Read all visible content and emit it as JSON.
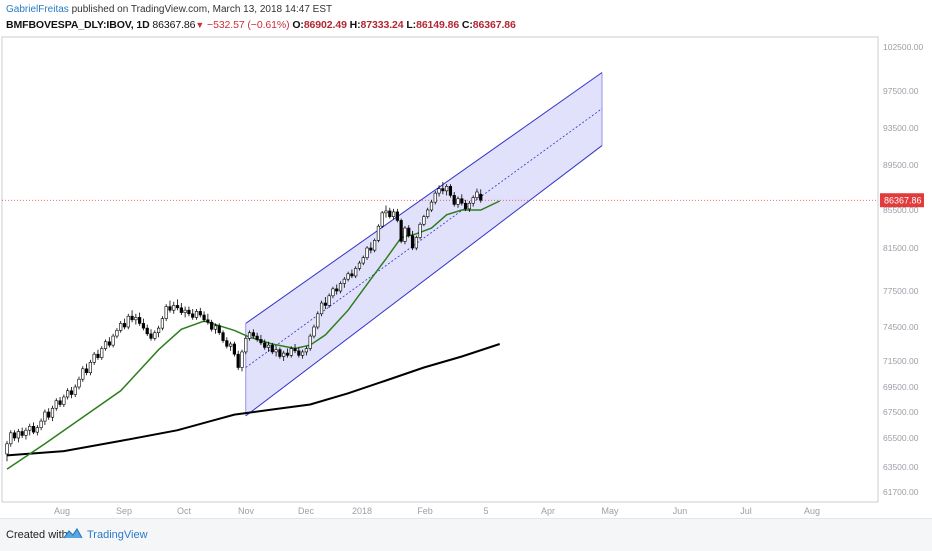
{
  "header": {
    "author": "GabrielFreitas",
    "published_text": "published on TradingView.com, March 13, 2018 14:47 EST",
    "symbol": "BMFBOVESPA_DLY:IBOV, 1D",
    "last": "86367.86",
    "change": "−532.57 (−0.61%)",
    "open_label": "O:",
    "open": "86902.49",
    "high_label": "H:",
    "high": "87333.24",
    "low_label": "L:",
    "low": "86149.86",
    "close_label": "C:",
    "close": "86367.86"
  },
  "footer": {
    "created": "Created with",
    "brand": "TradingView"
  },
  "colors": {
    "up": "#ffffff",
    "down": "#000000",
    "ma_short": "#2e7d1e",
    "ma_long": "#000000",
    "channel": "#3333cc",
    "price_line": "#e23b3b",
    "price_tag": "#e23b3b"
  },
  "chart_data": {
    "type": "candlestick",
    "title": "",
    "x_ticks": [
      "Aug",
      "Sep",
      "Oct",
      "Nov",
      "Dec",
      "2018",
      "Feb",
      "5",
      "Apr",
      "May",
      "Jun",
      "Jul",
      "Aug"
    ],
    "y_ticks": [
      "102500.00",
      "97500.00",
      "93500.00",
      "89500.00",
      "85500.00",
      "81500.00",
      "77500.00",
      "74500.00",
      "71500.00",
      "69500.00",
      "67500.00",
      "65500.00",
      "63500.00",
      "61700.00"
    ],
    "last_price": 86367.86,
    "last_price_label": "86367.86",
    "candles_ohlc": [
      [
        64400,
        65300,
        63900,
        65100
      ],
      [
        65100,
        66100,
        64900,
        65900
      ],
      [
        65900,
        66100,
        65300,
        65500
      ],
      [
        65500,
        66200,
        65200,
        66000
      ],
      [
        66000,
        66300,
        65500,
        65700
      ],
      [
        65700,
        66300,
        65400,
        66100
      ],
      [
        66100,
        66600,
        65700,
        66400
      ],
      [
        66400,
        66700,
        65800,
        65950
      ],
      [
        65950,
        66500,
        65700,
        66300
      ],
      [
        66300,
        67000,
        66100,
        66800
      ],
      [
        66800,
        67700,
        66500,
        67500
      ],
      [
        67500,
        67800,
        66900,
        67100
      ],
      [
        67100,
        68000,
        66800,
        67800
      ],
      [
        67800,
        68600,
        67600,
        68400
      ],
      [
        68400,
        68700,
        67900,
        68100
      ],
      [
        68100,
        68900,
        67900,
        68700
      ],
      [
        68700,
        69400,
        68500,
        69200
      ],
      [
        69200,
        69500,
        68600,
        68900
      ],
      [
        68900,
        69700,
        68700,
        69500
      ],
      [
        69500,
        70300,
        69300,
        70100
      ],
      [
        70100,
        71100,
        69900,
        70900
      ],
      [
        70900,
        71300,
        70400,
        70600
      ],
      [
        70600,
        71600,
        70400,
        71400
      ],
      [
        71400,
        72300,
        71200,
        72100
      ],
      [
        72100,
        72500,
        71600,
        71800
      ],
      [
        71800,
        72800,
        71600,
        72600
      ],
      [
        72600,
        73400,
        72400,
        73200
      ],
      [
        73200,
        73600,
        72700,
        72900
      ],
      [
        72900,
        73900,
        72700,
        73700
      ],
      [
        73700,
        74400,
        73500,
        74200
      ],
      [
        74200,
        75000,
        74000,
        74800
      ],
      [
        74800,
        75200,
        74300,
        74500
      ],
      [
        74500,
        75600,
        74300,
        75400
      ],
      [
        75400,
        75900,
        74900,
        75100
      ],
      [
        75100,
        75600,
        74700,
        75300
      ],
      [
        75300,
        75700,
        74600,
        74800
      ],
      [
        74800,
        75200,
        74200,
        74400
      ],
      [
        74400,
        74700,
        73700,
        73900
      ],
      [
        73900,
        74300,
        73300,
        73500
      ],
      [
        73500,
        74200,
        73300,
        74000
      ],
      [
        74000,
        74600,
        73600,
        74400
      ],
      [
        74400,
        75400,
        74200,
        75200
      ],
      [
        75200,
        76400,
        75000,
        76200
      ],
      [
        76200,
        76700,
        75700,
        75900
      ],
      [
        75900,
        76600,
        75600,
        76300
      ],
      [
        76300,
        76800,
        75900,
        76100
      ],
      [
        76100,
        76500,
        75500,
        75700
      ],
      [
        75700,
        76200,
        75300,
        75900
      ],
      [
        75900,
        76200,
        75400,
        75600
      ],
      [
        75600,
        76000,
        75100,
        75300
      ],
      [
        75300,
        76000,
        75100,
        75800
      ],
      [
        75800,
        76100,
        75300,
        75500
      ],
      [
        75500,
        75800,
        74900,
        75100
      ],
      [
        75100,
        75600,
        74700,
        74900
      ],
      [
        74900,
        75100,
        74100,
        74300
      ],
      [
        74300,
        74800,
        73900,
        74600
      ],
      [
        74600,
        74800,
        73800,
        74000
      ],
      [
        74000,
        74200,
        73100,
        73300
      ],
      [
        73300,
        73600,
        72600,
        72800
      ],
      [
        72800,
        73200,
        72400,
        73000
      ],
      [
        73000,
        73200,
        71900,
        72100
      ],
      [
        72100,
        72400,
        70800,
        71000
      ],
      [
        71000,
        72500,
        70700,
        72300
      ],
      [
        72300,
        73700,
        72100,
        73500
      ],
      [
        73500,
        74200,
        73300,
        74000
      ],
      [
        74000,
        74300,
        73500,
        73700
      ],
      [
        73700,
        74000,
        73200,
        73400
      ],
      [
        73400,
        73800,
        72900,
        73100
      ],
      [
        73100,
        73400,
        72500,
        72700
      ],
      [
        72700,
        73200,
        72300,
        72900
      ],
      [
        72900,
        73100,
        72100,
        72300
      ],
      [
        72300,
        72800,
        71900,
        72500
      ],
      [
        72500,
        72700,
        71700,
        71900
      ],
      [
        71900,
        72400,
        71500,
        72200
      ],
      [
        72200,
        72600,
        71800,
        72000
      ],
      [
        72000,
        72800,
        71800,
        72600
      ],
      [
        72600,
        73000,
        72200,
        72400
      ],
      [
        72400,
        72700,
        71800,
        72000
      ],
      [
        72000,
        72500,
        71700,
        72300
      ],
      [
        72300,
        72800,
        72000,
        72600
      ],
      [
        72600,
        73900,
        72400,
        73700
      ],
      [
        73700,
        74700,
        73500,
        74500
      ],
      [
        74500,
        75800,
        74300,
        75600
      ],
      [
        75600,
        76700,
        75400,
        76500
      ],
      [
        76500,
        77000,
        76000,
        76300
      ],
      [
        76300,
        77300,
        76100,
        77100
      ],
      [
        77100,
        77900,
        76900,
        77700
      ],
      [
        77700,
        78100,
        77200,
        77500
      ],
      [
        77500,
        78400,
        77300,
        78200
      ],
      [
        78200,
        78800,
        77800,
        78600
      ],
      [
        78600,
        79300,
        78400,
        79100
      ],
      [
        79100,
        79500,
        78700,
        78900
      ],
      [
        78900,
        79800,
        78700,
        79600
      ],
      [
        79600,
        80300,
        79400,
        80100
      ],
      [
        80100,
        80800,
        79900,
        80600
      ],
      [
        80600,
        81700,
        80400,
        81500
      ],
      [
        81500,
        82100,
        81000,
        81300
      ],
      [
        81300,
        82500,
        81100,
        82300
      ],
      [
        82300,
        84000,
        82100,
        83800
      ],
      [
        83800,
        85400,
        83600,
        85200
      ],
      [
        85200,
        85900,
        84700,
        85400
      ],
      [
        85400,
        85700,
        84600,
        84800
      ],
      [
        84800,
        85600,
        84500,
        85300
      ],
      [
        85300,
        85600,
        84200,
        84400
      ],
      [
        84400,
        84600,
        82000,
        82200
      ],
      [
        82200,
        83800,
        81900,
        83600
      ],
      [
        83600,
        83900,
        82600,
        82800
      ],
      [
        82800,
        83300,
        81300,
        81500
      ],
      [
        81500,
        82800,
        81300,
        82600
      ],
      [
        82600,
        84200,
        82400,
        84000
      ],
      [
        84000,
        85000,
        83800,
        84800
      ],
      [
        84800,
        85700,
        84600,
        85500
      ],
      [
        85500,
        86400,
        85300,
        86200
      ],
      [
        86200,
        87200,
        86000,
        87000
      ],
      [
        87000,
        87700,
        86700,
        87400
      ],
      [
        87400,
        88000,
        86900,
        87200
      ],
      [
        87200,
        87800,
        86800,
        87600
      ],
      [
        87600,
        87800,
        86600,
        86800
      ],
      [
        86800,
        87100,
        85800,
        86000
      ],
      [
        86000,
        86700,
        85700,
        86500
      ],
      [
        86500,
        86900,
        85900,
        86100
      ],
      [
        86100,
        86400,
        85400,
        85600
      ],
      [
        85600,
        86300,
        85300,
        86100
      ],
      [
        86100,
        86800,
        85800,
        86600
      ],
      [
        86600,
        87400,
        86400,
        87100
      ],
      [
        86902,
        87333,
        86150,
        86368
      ]
    ],
    "ma_short": [
      [
        0,
        63350
      ],
      [
        10,
        65100
      ],
      [
        20,
        67100
      ],
      [
        30,
        69200
      ],
      [
        40,
        72500
      ],
      [
        46,
        74300
      ],
      [
        52,
        75000
      ],
      [
        60,
        74200
      ],
      [
        64,
        73600
      ],
      [
        70,
        73000
      ],
      [
        76,
        72600
      ],
      [
        80,
        72900
      ],
      [
        84,
        73800
      ],
      [
        90,
        75900
      ],
      [
        96,
        78600
      ],
      [
        100,
        80500
      ],
      [
        104,
        82600
      ],
      [
        108,
        83000
      ],
      [
        112,
        83600
      ],
      [
        116,
        85000
      ],
      [
        120,
        85500
      ],
      [
        125,
        85500
      ],
      [
        130,
        86300
      ]
    ],
    "ma_long": [
      [
        0,
        64300
      ],
      [
        15,
        64600
      ],
      [
        30,
        65300
      ],
      [
        45,
        66100
      ],
      [
        55,
        66900
      ],
      [
        60,
        67300
      ],
      [
        70,
        67700
      ],
      [
        80,
        68100
      ],
      [
        90,
        69000
      ],
      [
        100,
        70000
      ],
      [
        110,
        71000
      ],
      [
        120,
        71900
      ],
      [
        130,
        73000
      ]
    ],
    "channel": {
      "start_index": 63,
      "end_index": 157,
      "upper": [
        74800,
        99600
      ],
      "middle": [
        71000,
        95600
      ],
      "lower": [
        67200,
        91600
      ]
    },
    "grid": false,
    "legend": "none"
  }
}
